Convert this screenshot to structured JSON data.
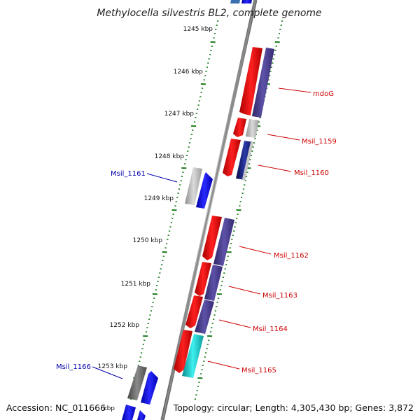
{
  "title": "Methylocella silvestris BL2, complete genome",
  "footer": {
    "accession": "Accession: NC_011666",
    "summary": "Topology: circular; Length: 4,305,430 bp; Genes: 3,872"
  },
  "colors": {
    "forward": "#ff0000",
    "reverse": "#0000ff",
    "cds_dark": "#4b3f8f",
    "cds_light": "#b8b8b8",
    "cds_gray": "#6e6e6e",
    "cds_navy": "#1a1f7a",
    "cds_cyan": "#19cccc",
    "label_red": "#cc0000",
    "label_blue": "#0000aa",
    "tick_green": "#1a7a1a",
    "backbone": "#8a8a8a"
  },
  "kbp_ticks": [
    {
      "label": "1245 kbp"
    },
    {
      "label": "1246 kbp"
    },
    {
      "label": "1247 kbp"
    },
    {
      "label": "1248 kbp"
    },
    {
      "label": "1249 kbp"
    },
    {
      "label": "1250 kbp"
    },
    {
      "label": "1251 kbp"
    },
    {
      "label": "1252 kbp"
    },
    {
      "label": "1253 kbp"
    },
    {
      "label": "kbp"
    }
  ],
  "gene_labels": [
    {
      "text": "mdoG",
      "strand": "forward"
    },
    {
      "text": "Msil_1159",
      "strand": "forward"
    },
    {
      "text": "Msil_1160",
      "strand": "forward"
    },
    {
      "text": "Msil_1161",
      "strand": "reverse"
    },
    {
      "text": "Msil_1162",
      "strand": "forward"
    },
    {
      "text": "Msil_1163",
      "strand": "forward"
    },
    {
      "text": "Msil_1164",
      "strand": "forward"
    },
    {
      "text": "Msil_1165",
      "strand": "forward"
    },
    {
      "text": "Msil_1166",
      "strand": "reverse"
    }
  ]
}
